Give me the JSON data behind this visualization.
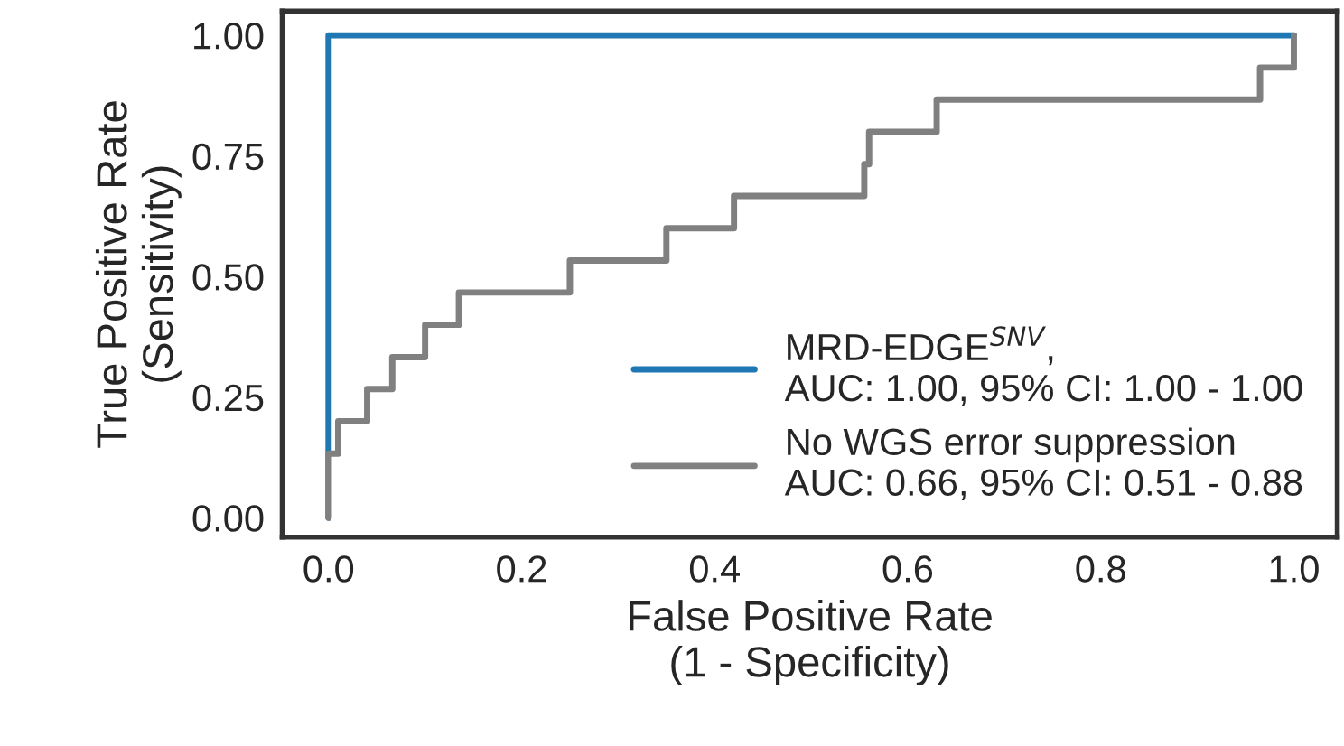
{
  "chart_data": {
    "type": "line",
    "xlabel": "False Positive Rate\n(1 - Specificity)",
    "ylabel": "True Positive Rate\n(Sensitivity)",
    "series": [
      {
        "name": "MRD-EDGE$^{SNV}$,\nAUC: 1.00, 95% CI: 1.00 - 1.00",
        "color": "#1f77b4",
        "x": [
          0,
          0,
          1.0
        ],
        "values": [
          0,
          1.0,
          1.0
        ]
      },
      {
        "name": "No WGS error suppression\nAUC: 0.66, 95% CI: 0.51 - 0.88",
        "color": "#808080",
        "x": [
          0,
          0,
          0.01,
          0.01,
          0.04,
          0.04,
          0.066,
          0.066,
          0.1,
          0.1,
          0.135,
          0.135,
          0.25,
          0.25,
          0.35,
          0.35,
          0.42,
          0.42,
          0.555,
          0.555,
          0.56,
          0.56,
          0.63,
          0.63,
          0.965,
          0.965,
          1.0,
          1.0
        ],
        "values": [
          0,
          0.133,
          0.133,
          0.2,
          0.2,
          0.267,
          0.267,
          0.333,
          0.333,
          0.4,
          0.4,
          0.467,
          0.467,
          0.533,
          0.533,
          0.6,
          0.6,
          0.667,
          0.667,
          0.733,
          0.733,
          0.8,
          0.8,
          0.867,
          0.867,
          0.933,
          0.933,
          1.0
        ]
      }
    ],
    "xlim": [
      -0.048,
      1.045
    ],
    "ylim": [
      -0.04,
      1.05
    ],
    "xticks": [
      {
        "value": 0,
        "label": "0.0"
      },
      0.2,
      0.4,
      0.6,
      0.8,
      {
        "value": 1,
        "label": "1.0"
      }
    ],
    "yticks": [
      {
        "value": 0,
        "label": "0.00"
      },
      0.25,
      {
        "value": 0.5,
        "label": "0.50"
      },
      0.75,
      {
        "value": 1,
        "label": "1.00"
      }
    ],
    "grid": false,
    "legend": "bottom right",
    "line_style": "solid",
    "marker": "none"
  }
}
